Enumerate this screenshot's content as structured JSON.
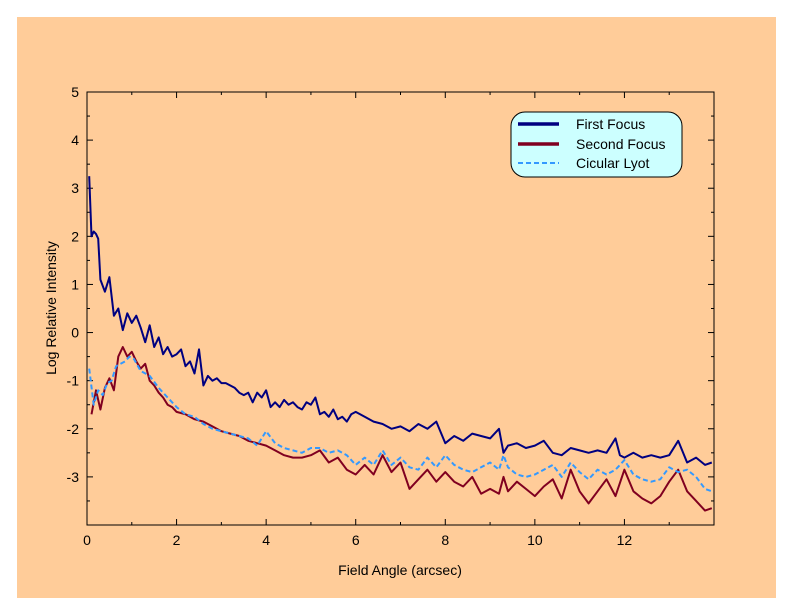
{
  "chart_data": {
    "type": "line",
    "title": "",
    "xlabel": "Field Angle (arcsec)",
    "ylabel": "Log Relative Intensity",
    "xlim": [
      0,
      14
    ],
    "ylim": [
      -4,
      5
    ],
    "x_ticks": [
      0,
      2,
      4,
      6,
      8,
      10,
      12
    ],
    "y_ticks": [
      -3,
      -2,
      -1,
      0,
      1,
      2,
      3,
      4,
      5
    ],
    "x_tick_labels": [
      "0",
      "2",
      "4",
      "6",
      "8",
      "10",
      "12"
    ],
    "y_tick_labels": [
      "-3",
      "-2",
      "-1",
      "0",
      "1",
      "2",
      "3",
      "4",
      "5"
    ],
    "grid": false,
    "legend_position": "top-right",
    "background": "#ffcc99",
    "plot_background": "#ffcc99",
    "legend_background": "#ccffff",
    "series": [
      {
        "name": "First Focus",
        "color": "#000080",
        "style": "solid",
        "x": [
          0.05,
          0.1,
          0.15,
          0.2,
          0.25,
          0.3,
          0.4,
          0.5,
          0.6,
          0.7,
          0.8,
          0.9,
          1.0,
          1.1,
          1.2,
          1.3,
          1.4,
          1.5,
          1.6,
          1.7,
          1.8,
          1.9,
          2.0,
          2.1,
          2.2,
          2.3,
          2.4,
          2.5,
          2.6,
          2.7,
          2.8,
          2.9,
          3.0,
          3.1,
          3.2,
          3.3,
          3.4,
          3.5,
          3.6,
          3.7,
          3.8,
          3.9,
          4.0,
          4.1,
          4.2,
          4.3,
          4.4,
          4.5,
          4.6,
          4.7,
          4.8,
          4.9,
          5.0,
          5.1,
          5.2,
          5.3,
          5.4,
          5.5,
          5.6,
          5.7,
          5.8,
          5.9,
          6.0,
          6.2,
          6.4,
          6.6,
          6.8,
          7.0,
          7.2,
          7.4,
          7.6,
          7.8,
          8.0,
          8.2,
          8.4,
          8.6,
          8.8,
          9.0,
          9.2,
          9.3,
          9.4,
          9.6,
          9.8,
          10.0,
          10.2,
          10.4,
          10.6,
          10.8,
          11.0,
          11.2,
          11.4,
          11.6,
          11.8,
          11.9,
          12.0,
          12.2,
          12.4,
          12.6,
          12.8,
          13.0,
          13.2,
          13.4,
          13.6,
          13.8,
          13.95
        ],
        "values": [
          3.25,
          2.0,
          2.1,
          2.05,
          1.95,
          1.1,
          0.85,
          1.15,
          0.35,
          0.5,
          0.05,
          0.4,
          0.2,
          0.35,
          0.1,
          -0.2,
          0.15,
          -0.3,
          -0.1,
          -0.45,
          -0.3,
          -0.5,
          -0.45,
          -0.35,
          -0.7,
          -0.6,
          -0.85,
          -0.35,
          -1.1,
          -0.9,
          -1.0,
          -0.95,
          -1.05,
          -1.05,
          -1.1,
          -1.15,
          -1.25,
          -1.3,
          -1.25,
          -1.45,
          -1.25,
          -1.35,
          -1.2,
          -1.55,
          -1.45,
          -1.55,
          -1.4,
          -1.5,
          -1.45,
          -1.55,
          -1.6,
          -1.45,
          -1.5,
          -1.35,
          -1.7,
          -1.65,
          -1.75,
          -1.6,
          -1.8,
          -1.75,
          -1.85,
          -1.7,
          -1.65,
          -1.75,
          -1.85,
          -1.9,
          -2.0,
          -1.95,
          -2.05,
          -1.9,
          -2.0,
          -1.85,
          -2.3,
          -2.15,
          -2.25,
          -2.1,
          -2.15,
          -2.2,
          -2.0,
          -2.5,
          -2.35,
          -2.3,
          -2.4,
          -2.35,
          -2.25,
          -2.5,
          -2.55,
          -2.4,
          -2.45,
          -2.5,
          -2.45,
          -2.5,
          -2.2,
          -2.55,
          -2.6,
          -2.5,
          -2.6,
          -2.55,
          -2.6,
          -2.55,
          -2.25,
          -2.7,
          -2.6,
          -2.75,
          -2.7
        ]
      },
      {
        "name": "Second Focus",
        "color": "#800020",
        "style": "solid",
        "x": [
          0.1,
          0.2,
          0.3,
          0.4,
          0.5,
          0.6,
          0.7,
          0.8,
          0.9,
          1.0,
          1.1,
          1.2,
          1.3,
          1.4,
          1.5,
          1.6,
          1.7,
          1.8,
          1.9,
          2.0,
          2.2,
          2.4,
          2.6,
          2.8,
          3.0,
          3.2,
          3.4,
          3.6,
          3.8,
          4.0,
          4.2,
          4.4,
          4.6,
          4.8,
          5.0,
          5.2,
          5.4,
          5.6,
          5.8,
          6.0,
          6.2,
          6.4,
          6.6,
          6.8,
          7.0,
          7.2,
          7.4,
          7.6,
          7.8,
          8.0,
          8.2,
          8.4,
          8.6,
          8.8,
          9.0,
          9.2,
          9.3,
          9.4,
          9.6,
          9.8,
          10.0,
          10.2,
          10.4,
          10.6,
          10.8,
          11.0,
          11.2,
          11.4,
          11.6,
          11.8,
          12.0,
          12.2,
          12.4,
          12.6,
          12.8,
          13.0,
          13.2,
          13.4,
          13.6,
          13.8,
          13.95
        ],
        "values": [
          -1.7,
          -1.2,
          -1.6,
          -1.15,
          -0.95,
          -1.2,
          -0.5,
          -0.3,
          -0.5,
          -0.4,
          -0.6,
          -0.75,
          -0.65,
          -1.0,
          -1.1,
          -1.25,
          -1.35,
          -1.5,
          -1.55,
          -1.65,
          -1.7,
          -1.8,
          -1.85,
          -1.95,
          -2.05,
          -2.1,
          -2.15,
          -2.25,
          -2.3,
          -2.35,
          -2.45,
          -2.55,
          -2.6,
          -2.6,
          -2.55,
          -2.45,
          -2.7,
          -2.6,
          -2.85,
          -2.95,
          -2.75,
          -2.95,
          -2.55,
          -2.9,
          -2.7,
          -3.25,
          -3.05,
          -2.85,
          -3.1,
          -2.9,
          -3.1,
          -3.2,
          -3.0,
          -3.35,
          -3.25,
          -3.35,
          -3.0,
          -3.3,
          -3.1,
          -3.25,
          -3.4,
          -3.2,
          -3.05,
          -3.45,
          -2.85,
          -3.3,
          -3.55,
          -3.3,
          -3.05,
          -3.4,
          -2.85,
          -3.3,
          -3.45,
          -3.55,
          -3.4,
          -3.1,
          -2.85,
          -3.3,
          -3.5,
          -3.7,
          -3.65
        ]
      },
      {
        "name": "Cicular Lyot",
        "color": "#3399ff",
        "style": "dashed",
        "x": [
          0.05,
          0.15,
          0.25,
          0.35,
          0.45,
          0.55,
          0.65,
          0.75,
          0.85,
          0.95,
          1.05,
          1.2,
          1.4,
          1.6,
          1.8,
          2.0,
          2.2,
          2.4,
          2.6,
          2.8,
          3.0,
          3.2,
          3.4,
          3.6,
          3.8,
          4.0,
          4.2,
          4.4,
          4.6,
          4.8,
          5.0,
          5.2,
          5.4,
          5.6,
          5.8,
          6.0,
          6.2,
          6.4,
          6.6,
          6.8,
          7.0,
          7.2,
          7.4,
          7.6,
          7.8,
          8.0,
          8.2,
          8.4,
          8.6,
          8.8,
          9.0,
          9.2,
          9.3,
          9.4,
          9.6,
          9.8,
          10.0,
          10.2,
          10.4,
          10.6,
          10.8,
          11.0,
          11.2,
          11.4,
          11.6,
          11.8,
          12.0,
          12.2,
          12.4,
          12.6,
          12.8,
          13.0,
          13.2,
          13.4,
          13.6,
          13.8,
          13.95
        ],
        "values": [
          -0.75,
          -1.5,
          -1.2,
          -1.3,
          -1.05,
          -1.0,
          -0.7,
          -0.65,
          -0.6,
          -0.5,
          -0.55,
          -0.8,
          -0.9,
          -1.15,
          -1.35,
          -1.55,
          -1.7,
          -1.75,
          -1.9,
          -2.0,
          -2.05,
          -2.1,
          -2.15,
          -2.2,
          -2.35,
          -2.05,
          -2.3,
          -2.4,
          -2.45,
          -2.5,
          -2.4,
          -2.4,
          -2.5,
          -2.45,
          -2.55,
          -2.75,
          -2.6,
          -2.75,
          -2.45,
          -2.75,
          -2.6,
          -2.8,
          -2.85,
          -2.6,
          -2.8,
          -2.55,
          -2.75,
          -2.85,
          -2.9,
          -2.8,
          -2.7,
          -2.85,
          -2.55,
          -2.8,
          -2.95,
          -3.0,
          -2.95,
          -2.85,
          -2.75,
          -3.0,
          -2.7,
          -2.9,
          -3.05,
          -2.85,
          -2.95,
          -2.85,
          -2.65,
          -2.95,
          -3.05,
          -3.1,
          -3.05,
          -2.8,
          -2.9,
          -2.85,
          -3.0,
          -3.25,
          -3.3
        ]
      }
    ]
  }
}
